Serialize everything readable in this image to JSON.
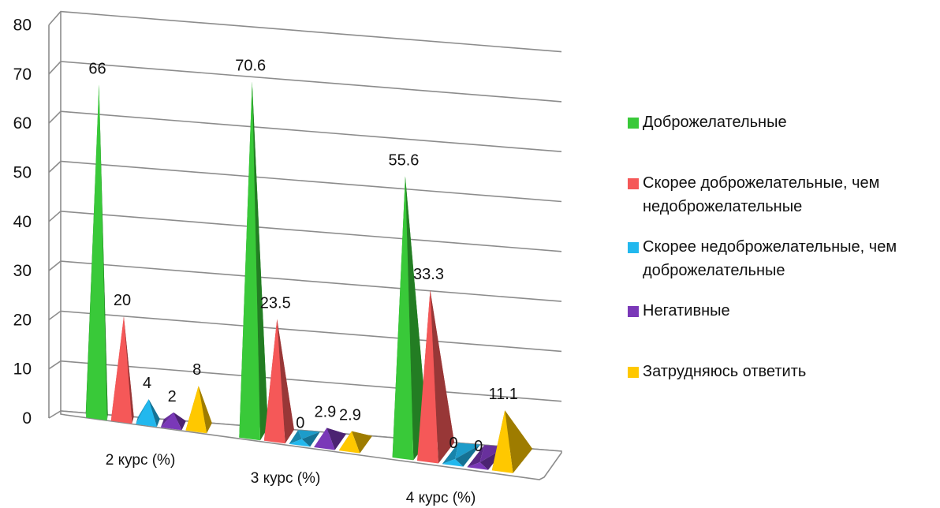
{
  "chart_data": {
    "type": "bar",
    "bar_shape": "pyramid",
    "three_d": true,
    "categories": [
      "2 курс (%)",
      "3 курс (%)",
      "4 курс (%)"
    ],
    "series": [
      {
        "name": "Доброжелательные",
        "values": [
          66,
          70.6,
          55.6
        ],
        "labels": [
          "66",
          "70.6",
          "55.6"
        ],
        "color": "#39c939"
      },
      {
        "name": "Скорее доброжелательные, чем недоброжелательные",
        "values": [
          20,
          23.5,
          33.3
        ],
        "labels": [
          "20",
          "23.5",
          "33.3"
        ],
        "color": "#f55858"
      },
      {
        "name": "Скорее недоброжелательные, чем доброжелательные",
        "values": [
          4,
          0,
          0
        ],
        "labels": [
          "4",
          "0",
          "0"
        ],
        "color": "#22b8ee"
      },
      {
        "name": "Негативные",
        "values": [
          2,
          2.9,
          0
        ],
        "labels": [
          "2",
          "2.9",
          "0"
        ],
        "color": "#7a38b8"
      },
      {
        "name": "Затрудняюсь ответить",
        "values": [
          8,
          2.9,
          11.1
        ],
        "labels": [
          "8",
          "2.9",
          "11.1"
        ],
        "color": "#ffc800"
      }
    ],
    "yticks": [
      "0",
      "10",
      "20",
      "30",
      "40",
      "50",
      "60",
      "70",
      "80"
    ],
    "ylim": [
      0,
      80
    ],
    "grid": true,
    "legend_position": "right"
  }
}
